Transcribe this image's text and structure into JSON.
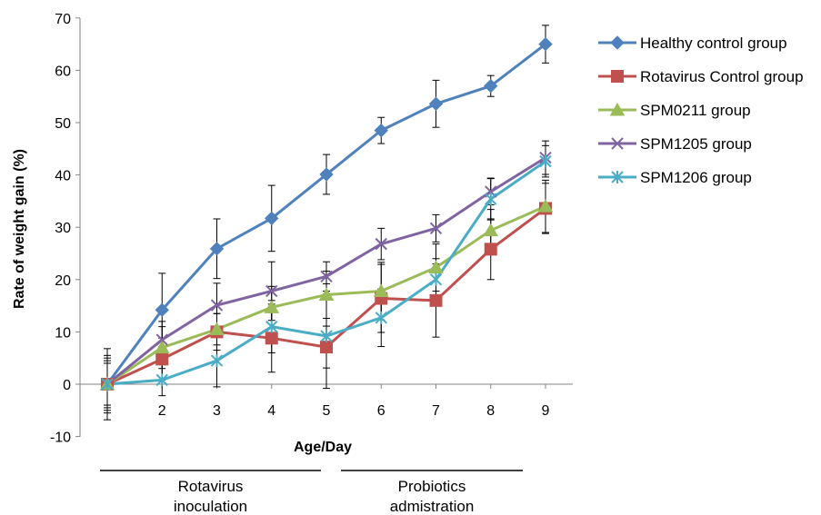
{
  "chart_data": {
    "type": "line",
    "xlabel": "Age/Day",
    "ylabel": "Rate of weight gain  (%)",
    "x": [
      1,
      2,
      3,
      4,
      5,
      6,
      7,
      8,
      9
    ],
    "x_tick_labels": [
      "",
      "2",
      "3",
      "4",
      "5",
      "6",
      "7",
      "8",
      "9"
    ],
    "ylim": [
      -10,
      70
    ],
    "y_ticks": [
      -10,
      0,
      10,
      20,
      30,
      40,
      50,
      60,
      70
    ],
    "grid": false,
    "legend_position": "right",
    "series": [
      {
        "name": "Healthy control group",
        "color": "#4f81bd",
        "marker": "diamond",
        "values": [
          0,
          14.2,
          25.9,
          31.7,
          40.1,
          48.5,
          53.6,
          57.0,
          65.0
        ],
        "error": [
          6.8,
          7.0,
          5.7,
          6.3,
          3.8,
          2.5,
          4.5,
          2.0,
          3.6
        ]
      },
      {
        "name": "Rotavirus Control group",
        "color": "#c0504d",
        "marker": "square",
        "values": [
          0,
          4.8,
          10.0,
          8.8,
          7.1,
          16.4,
          16.0,
          25.8,
          33.6
        ],
        "error": [
          5.0,
          4.0,
          3.5,
          6.5,
          4.0,
          6.5,
          7.0,
          5.8,
          4.8
        ]
      },
      {
        "name": "SPM0211 group",
        "color": "#9bbb59",
        "marker": "triangle",
        "values": [
          0,
          7.0,
          10.5,
          14.7,
          17.1,
          17.8,
          22.3,
          29.4,
          34.0
        ],
        "error": [
          4.5,
          4.0,
          3.0,
          4.0,
          4.5,
          5.5,
          4.5,
          4.0,
          5.0
        ]
      },
      {
        "name": "SPM1205 group",
        "color": "#8064a2",
        "marker": "x",
        "values": [
          0,
          8.5,
          15.1,
          17.8,
          20.6,
          26.8,
          29.8,
          36.8,
          43.3
        ],
        "error": [
          5.5,
          3.5,
          4.2,
          5.6,
          2.8,
          3.0,
          2.6,
          2.5,
          3.2
        ]
      },
      {
        "name": "SPM1206 group",
        "color": "#4bacc6",
        "marker": "star",
        "values": [
          0,
          0.8,
          4.5,
          11.0,
          9.2,
          12.7,
          20.0,
          35.4,
          42.6
        ],
        "error": [
          4.0,
          3.0,
          5.0,
          5.0,
          10.0,
          5.5,
          4.0,
          4.0,
          3.0
        ]
      }
    ],
    "phases": [
      {
        "label_line1": "Rotavirus",
        "label_line2": "inoculation"
      },
      {
        "label_line1": "Probiotics",
        "label_line2": "admistration"
      }
    ]
  }
}
